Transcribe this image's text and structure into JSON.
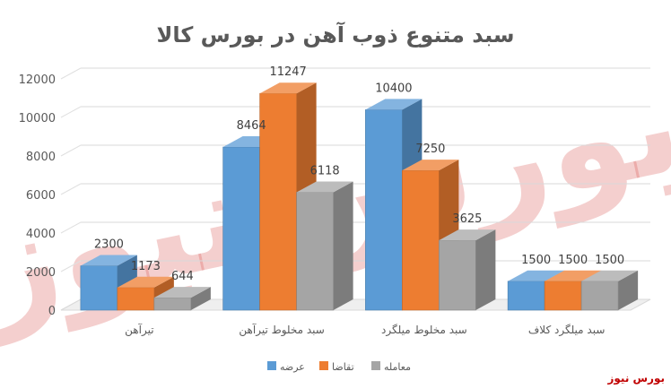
{
  "chart_data": {
    "type": "bar",
    "title": "سبد متنوع ذوب آهن در بورس کالا",
    "categories": [
      "تیرآهن",
      "سبد مخلوط تیرآهن",
      "سبد مخلوط میلگرد",
      "سبد میلگرد کلاف"
    ],
    "series": [
      {
        "name": "عرضه",
        "values": [
          2300,
          8464,
          10400,
          1500
        ],
        "color": "#5b9bd5"
      },
      {
        "name": "تقاضا",
        "values": [
          1173,
          11247,
          7250,
          1500
        ],
        "color": "#ed7d31"
      },
      {
        "name": "معامله",
        "values": [
          644,
          6118,
          3625,
          1500
        ],
        "color": "#a5a5a5"
      }
    ],
    "ylim": [
      0,
      12000
    ],
    "yticks": [
      0,
      2000,
      4000,
      6000,
      8000,
      10000,
      12000
    ],
    "grid": true,
    "legend_position": "bottom",
    "style": "3d-clustered-column"
  },
  "watermark": "بورس نیوز",
  "brand": "بورس نیوز"
}
